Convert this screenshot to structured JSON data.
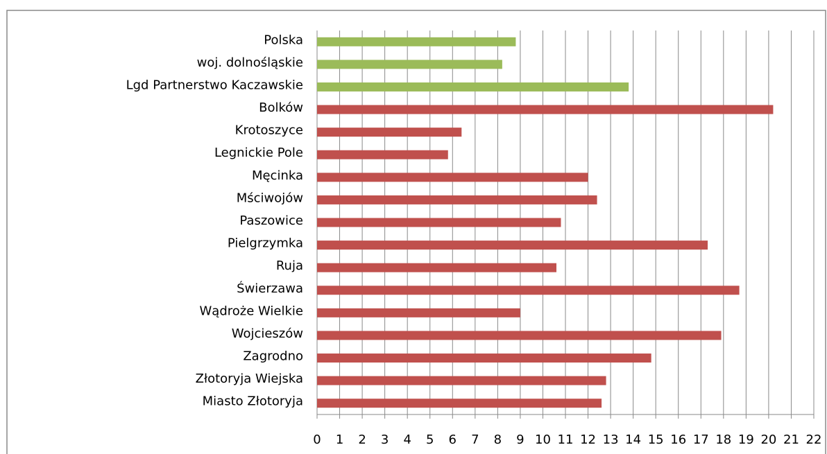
{
  "chart_data": {
    "type": "bar",
    "orientation": "horizontal",
    "categories": [
      "Polska",
      "woj. dolnośląskie",
      "Lgd Partnerstwo Kaczawskie",
      "Bolków",
      "Krotoszyce",
      "Legnickie Pole",
      "Męcinka",
      "Mściwojów",
      "Paszowice",
      "Pielgrzymka",
      "Ruja",
      "Świerzawa",
      "Wądroże Wielkie",
      "Wojcieszów",
      "Zagrodno",
      "Złotoryja Wiejska",
      "Miasto Złotoryja"
    ],
    "values": [
      8.8,
      8.2,
      13.8,
      20.2,
      6.4,
      5.8,
      12.0,
      12.4,
      10.8,
      17.3,
      10.6,
      18.7,
      9.0,
      17.9,
      14.8,
      12.8,
      12.6
    ],
    "colors": [
      "#9bbb59",
      "#9bbb59",
      "#9bbb59",
      "#c0504d",
      "#c0504d",
      "#c0504d",
      "#c0504d",
      "#c0504d",
      "#c0504d",
      "#c0504d",
      "#c0504d",
      "#c0504d",
      "#c0504d",
      "#c0504d",
      "#c0504d",
      "#c0504d",
      "#c0504d"
    ],
    "xlim": [
      0,
      22
    ],
    "xticks": [
      0,
      1,
      2,
      3,
      4,
      5,
      6,
      7,
      8,
      9,
      10,
      11,
      12,
      13,
      14,
      15,
      16,
      17,
      18,
      19,
      20,
      21,
      22
    ],
    "grid": true
  }
}
